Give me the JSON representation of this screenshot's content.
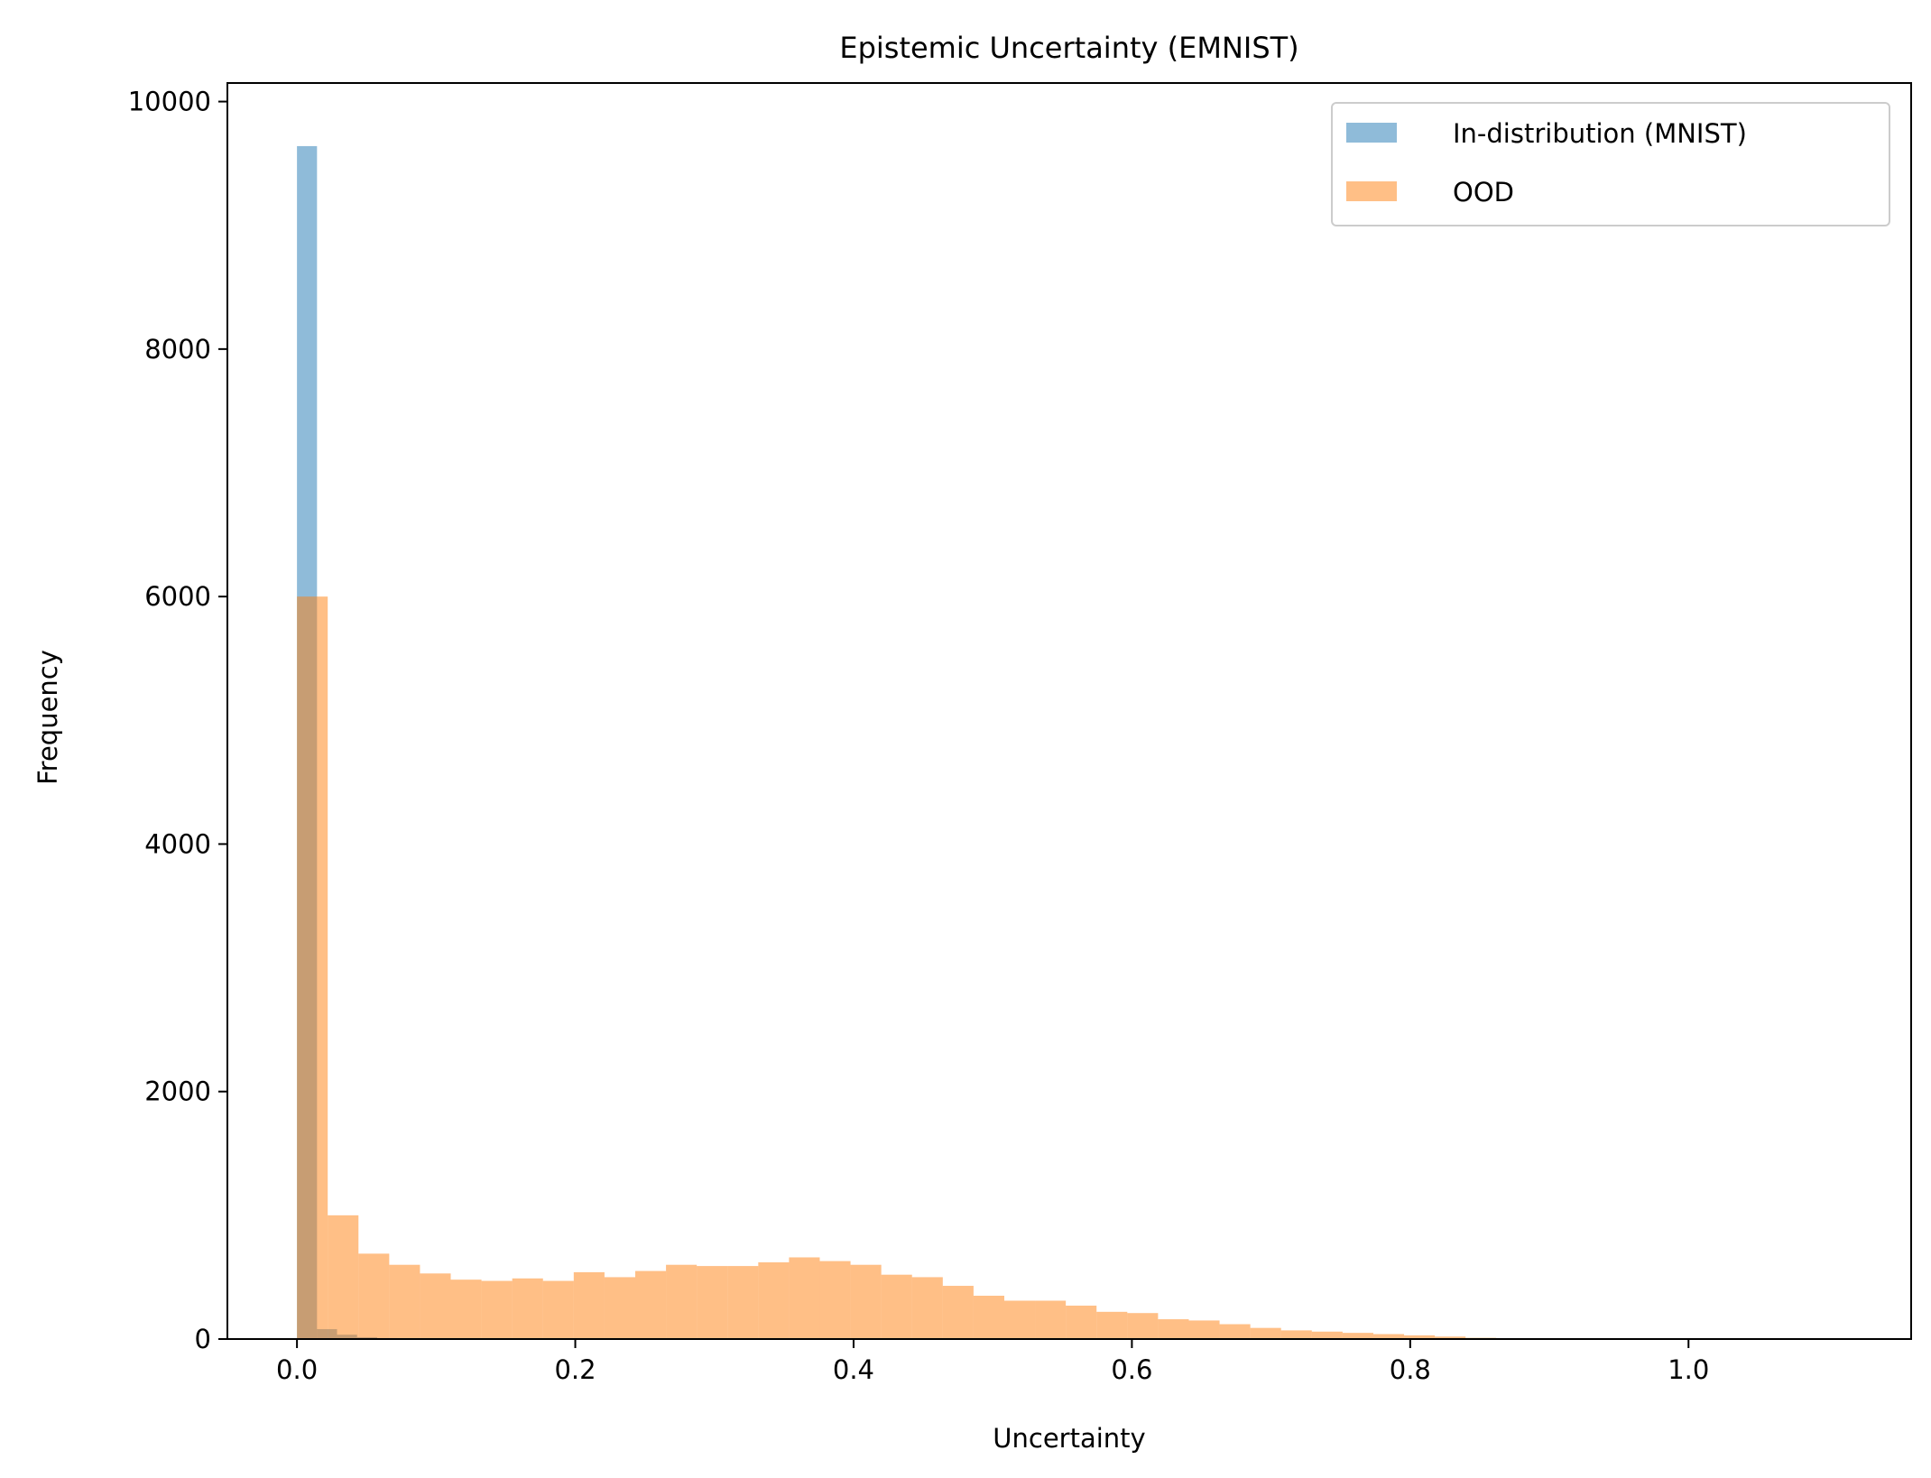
{
  "chart_data": {
    "type": "bar",
    "title": "Epistemic Uncertainty (EMNIST)",
    "xlabel": "Uncertainty",
    "ylabel": "Frequency",
    "xlim": [
      -0.05,
      1.16
    ],
    "ylim": [
      0,
      10150
    ],
    "xticks": [
      0.0,
      0.2,
      0.4,
      0.6,
      0.8,
      1.0
    ],
    "xtick_labels": [
      "0.0",
      "0.2",
      "0.4",
      "0.6",
      "0.8",
      "1.0"
    ],
    "yticks": [
      0,
      2000,
      4000,
      6000,
      8000,
      10000
    ],
    "ytick_labels": [
      "0",
      "2000",
      "4000",
      "6000",
      "8000",
      "10000"
    ],
    "legend_position": "upper right",
    "grid": false,
    "series": [
      {
        "name": "In-distribution (MNIST)",
        "color": "#1f77b4",
        "opacity": 0.5,
        "bin_edges": [
          0.0,
          0.0144,
          0.0288,
          0.0432,
          0.0576,
          0.072,
          0.0864,
          0.1008
        ],
        "counts": [
          9640,
          80,
          35,
          15,
          8,
          5,
          3
        ]
      },
      {
        "name": "OOD",
        "color": "#ff7f0e",
        "opacity": 0.5,
        "bin_edges": [
          0.0,
          0.0221,
          0.0442,
          0.0663,
          0.0884,
          0.1105,
          0.1326,
          0.1547,
          0.1768,
          0.1989,
          0.221,
          0.2431,
          0.2652,
          0.2873,
          0.3094,
          0.3315,
          0.3536,
          0.3757,
          0.3978,
          0.4199,
          0.442,
          0.4641,
          0.4862,
          0.5083,
          0.5304,
          0.5525,
          0.5746,
          0.5967,
          0.6188,
          0.6409,
          0.663,
          0.6851,
          0.7072,
          0.7293,
          0.7514,
          0.7735,
          0.7956,
          0.8177,
          0.8398,
          0.8619,
          0.884,
          0.9061,
          0.9282,
          0.9503,
          0.9724,
          0.9945,
          1.0166,
          1.0387,
          1.0608,
          1.0829,
          1.105
        ],
        "counts": [
          6000,
          1000,
          690,
          600,
          530,
          480,
          470,
          490,
          470,
          540,
          500,
          550,
          600,
          590,
          590,
          620,
          660,
          630,
          600,
          520,
          500,
          430,
          350,
          310,
          310,
          270,
          220,
          210,
          160,
          150,
          120,
          90,
          70,
          60,
          50,
          40,
          30,
          20,
          10,
          5,
          3,
          2,
          1,
          1,
          0,
          0,
          0,
          0,
          0,
          0
        ]
      }
    ]
  }
}
